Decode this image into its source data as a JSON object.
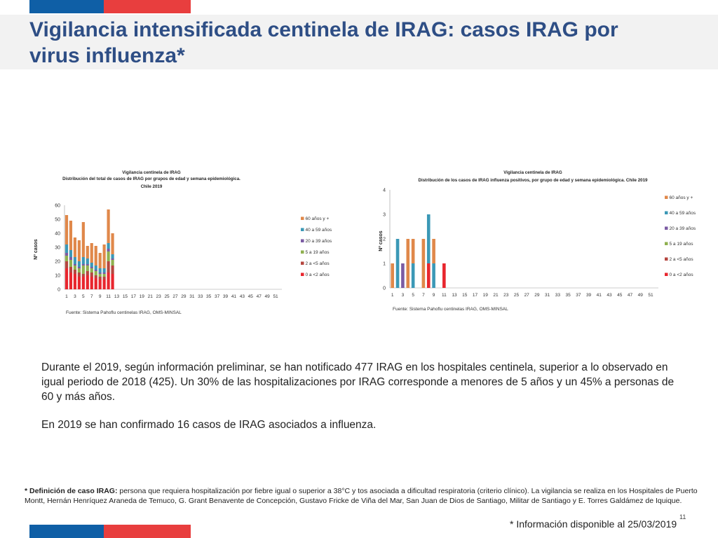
{
  "colors": {
    "brand_blue": "#0f5fa6",
    "brand_red": "#e83e3e",
    "title": "#2e4e85",
    "age_60_plus": "#e0884a",
    "age_40_59": "#3b98b6",
    "age_20_39": "#7b5ba3",
    "age_5_19": "#8fb04f",
    "age_2_5": "#b5463f",
    "age_0_2": "#e8262e"
  },
  "header": {
    "title": "Vigilancia intensificada centinela de IRAG: casos IRAG por virus influenza*"
  },
  "chart_data": [
    {
      "type": "bar",
      "stacked": true,
      "title": "Vigilancia centinela de IRAG",
      "subtitle": "Distribución del total de casos de IRAG por  grupos de edad y semana epidemiológica.",
      "subtitle2": "Chile 2019",
      "ylabel": "Nº casos",
      "xlabel": "",
      "ylim": [
        0,
        60
      ],
      "yticks": [
        "0",
        "10",
        "20",
        "30",
        "40",
        "50",
        "60"
      ],
      "x_ticks": [
        "1",
        "3",
        "5",
        "7",
        "9",
        "11",
        "13",
        "15",
        "17",
        "19",
        "21",
        "23",
        "25",
        "27",
        "29",
        "31",
        "33",
        "35",
        "37",
        "39",
        "41",
        "43",
        "45",
        "47",
        "49",
        "51"
      ],
      "x_count": 52,
      "legend_position": "right",
      "source": "Fuente: Sistema Pahoflu centinelas IRAG, OMS-MINSAL",
      "series": [
        {
          "name": "0 a <2 años",
          "color": "#e8262e",
          "values": [
            15,
            12,
            11,
            9,
            9,
            10,
            9,
            8,
            7,
            7,
            12,
            11
          ]
        },
        {
          "name": "2 a <5 años",
          "color": "#b5463f",
          "values": [
            5,
            4,
            3,
            3,
            2,
            3,
            3,
            2,
            2,
            2,
            8,
            6
          ]
        },
        {
          "name": "5 a 19 años",
          "color": "#8fb04f",
          "values": [
            4,
            5,
            3,
            3,
            6,
            4,
            3,
            3,
            2,
            2,
            7,
            4
          ]
        },
        {
          "name": "20 a 39 años",
          "color": "#7b5ba3",
          "values": [
            2,
            2,
            1,
            1,
            1,
            1,
            1,
            1,
            1,
            1,
            2,
            1
          ]
        },
        {
          "name": "40 a  59 años",
          "color": "#3b98b6",
          "values": [
            6,
            5,
            5,
            4,
            5,
            4,
            3,
            3,
            3,
            3,
            4,
            3
          ]
        },
        {
          "name": "60 años y +",
          "color": "#e0884a",
          "values": [
            21,
            21,
            14,
            15,
            25,
            9,
            14,
            14,
            11,
            17,
            24,
            15
          ]
        }
      ]
    },
    {
      "type": "bar",
      "stacked": true,
      "title": "Vigilancia centinela de IRAG",
      "subtitle": "Distribución de los casos de IRAG influenza positivos, por grupo de edad y semana epidemiológica. Chile 2019",
      "ylabel": "Nº casos",
      "xlabel": "",
      "ylim": [
        0,
        4
      ],
      "yticks": [
        "0",
        "1",
        "2",
        "3",
        "4"
      ],
      "x_ticks": [
        "1",
        "3",
        "5",
        "7",
        "9",
        "11",
        "13",
        "15",
        "17",
        "19",
        "21",
        "23",
        "25",
        "27",
        "29",
        "31",
        "33",
        "35",
        "37",
        "39",
        "41",
        "43",
        "45",
        "47",
        "49",
        "51"
      ],
      "x_count": 52,
      "legend_position": "right",
      "source": "Fuente: Sistema Pahoflu centinelas IRAG, OMS-MINSAL",
      "series": [
        {
          "name": "0 a <2 años",
          "color": "#e8262e",
          "values": [
            0,
            0,
            0,
            0,
            0,
            0,
            0,
            1,
            0,
            0,
            1,
            0
          ]
        },
        {
          "name": "2 a <5 años",
          "color": "#b5463f",
          "values": [
            0,
            0,
            0,
            0,
            0,
            0,
            0,
            0,
            0,
            0,
            0,
            0
          ]
        },
        {
          "name": "5 a 19 años",
          "color": "#8fb04f",
          "values": [
            0,
            0,
            0,
            0,
            0,
            0,
            0,
            0,
            0,
            0,
            0,
            0
          ]
        },
        {
          "name": "20 a 39 años",
          "color": "#7b5ba3",
          "values": [
            0,
            0,
            1,
            0,
            0,
            0,
            0,
            0,
            0,
            0,
            0,
            0
          ]
        },
        {
          "name": "40 a  59 años",
          "color": "#3b98b6",
          "values": [
            0,
            2,
            0,
            0,
            1,
            0,
            0,
            2,
            1,
            0,
            0,
            0
          ]
        },
        {
          "name": "60 años y +",
          "color": "#e0884a",
          "values": [
            1,
            0,
            0,
            2,
            1,
            0,
            2,
            0,
            1,
            0,
            0,
            0
          ]
        }
      ],
      "legend_labels": [
        "60 años y +",
        "40 a  59 años",
        "20 a 39 años",
        "5 a 19 años",
        "2 a <5 años",
        "0 a <2 años"
      ]
    }
  ],
  "body": {
    "paragraph1": "Durante el 2019, según información preliminar, se han notificado 477 IRAG en los hospitales centinela, superior a lo observado en igual periodo de 2018 (425). Un 30% de las hospitalizaciones por IRAG  corresponde a menores de 5 años y un 45% a personas de 60 y más años.",
    "paragraph2": "En 2019 se han confirmado 16 casos de IRAG asociados a influenza."
  },
  "footer": {
    "definition_label": "* Definición de caso IRAG:",
    "definition_text": " persona que requiera hospitalización por fiebre igual o superior a 38°C y tos asociada a dificultad respiratoria (criterio clínico). La vigilancia se realiza en los Hospitales de Puerto Montt, Hernán Henríquez Araneda de  Temuco, G. Grant Benavente de Concepción, Gustavo Fricke de Viña del Mar, San Juan de Dios de Santiago, Militar de Santiago y E. Torres Galdámez de Iquique.",
    "info_note": "* Información disponible al 25/03/2019",
    "page_number": "11"
  }
}
